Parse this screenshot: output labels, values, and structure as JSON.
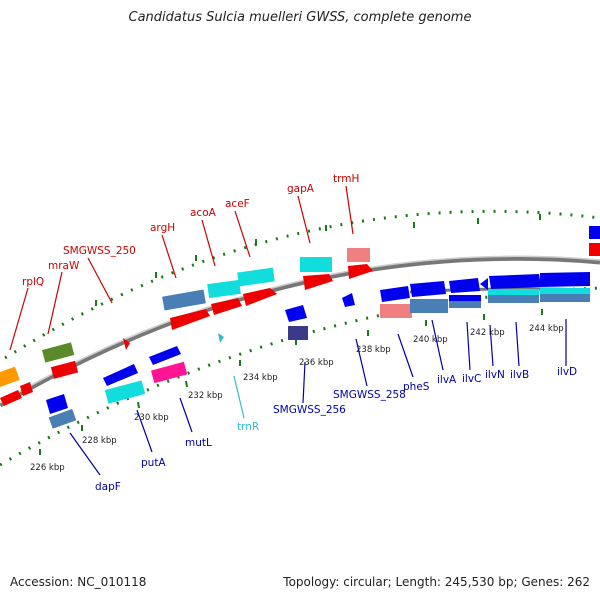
{
  "title": "Candidatus Sulcia muelleri GWSS, complete genome",
  "accession": "Accession: NC_010118",
  "topology": "Topology: circular; Length: 245,530 bp; Genes: 262",
  "colors": {
    "forward_label": "#cc0000",
    "reverse_label": "#0000aa",
    "rna_label": "#33bbcc",
    "backbone": "#888888",
    "ticks_major": "#1a7a1a",
    "blue": "#0000ee",
    "red": "#ee0000",
    "pink": "#f08080",
    "cyan": "#11dddd",
    "steel": "#4a7fb5",
    "olive": "#5a8a2a",
    "orange": "#ff9900",
    "magenta": "#ff1493",
    "navy": "#3a3a8a"
  },
  "kbp_labels": [
    "226 kbp",
    "228 kbp",
    "230 kbp",
    "232 kbp",
    "234 kbp",
    "236 kbp",
    "238 kbp",
    "240 kbp",
    "242 kbp",
    "244 kbp"
  ],
  "forward_genes": [
    "rplQ",
    "mraW",
    "SMGWSS_250",
    "argH",
    "acoA",
    "aceF",
    "gapA",
    "trmH"
  ],
  "reverse_genes": [
    "dapF",
    "putA",
    "mutL",
    "SMGWSS_256",
    "SMGWSS_258",
    "pheS",
    "ilvA",
    "ilvC",
    "ilvN",
    "ilvB",
    "ilvD"
  ],
  "rna_genes": [
    "trnR"
  ]
}
